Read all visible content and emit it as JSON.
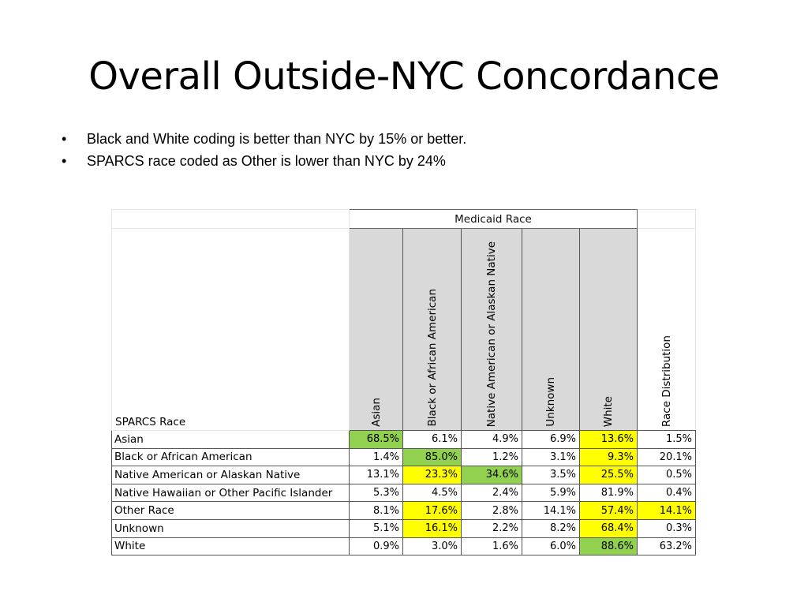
{
  "slide": {
    "title": "Overall Outside-NYC Concordance",
    "bullets": [
      "Black and White coding is better than NYC by 15% or better.",
      "SPARCS race coded as Other is lower than NYC by 24%"
    ],
    "bullet_glyph": "•"
  },
  "table": {
    "group_header": "Medicaid Race",
    "row_header": "SPARCS Race",
    "columns": [
      "Asian",
      "Black or African American",
      "Native American or Alaskan Native",
      "Unknown",
      "White",
      "Race Distribution"
    ],
    "highlight_colors": {
      "green": "#92d050",
      "yellow": "#ffff00"
    },
    "rows": [
      {
        "label": "Asian",
        "values": [
          "68.5%",
          "6.1%",
          "4.9%",
          "6.9%",
          "13.6%",
          "1.5%"
        ],
        "fills": [
          "green",
          "none",
          "none",
          "none",
          "yellow",
          "none"
        ]
      },
      {
        "label": "Black or African American",
        "values": [
          "1.4%",
          "85.0%",
          "1.2%",
          "3.1%",
          "9.3%",
          "20.1%"
        ],
        "fills": [
          "none",
          "green",
          "none",
          "none",
          "yellow",
          "none"
        ]
      },
      {
        "label": "Native American or Alaskan Native",
        "values": [
          "13.1%",
          "23.3%",
          "34.6%",
          "3.5%",
          "25.5%",
          "0.5%"
        ],
        "fills": [
          "none",
          "yellow",
          "green",
          "none",
          "yellow",
          "none"
        ]
      },
      {
        "label": "Native Hawaiian or Other Pacific Islander",
        "values": [
          "5.3%",
          "4.5%",
          "2.4%",
          "5.9%",
          "81.9%",
          "0.4%"
        ],
        "fills": [
          "none",
          "none",
          "none",
          "none",
          "none",
          "none"
        ]
      },
      {
        "label": "Other Race",
        "values": [
          "8.1%",
          "17.6%",
          "2.8%",
          "14.1%",
          "57.4%",
          "14.1%"
        ],
        "fills": [
          "none",
          "yellow",
          "none",
          "none",
          "yellow",
          "yellow"
        ]
      },
      {
        "label": "Unknown",
        "values": [
          "5.1%",
          "16.1%",
          "2.2%",
          "8.2%",
          "68.4%",
          "0.3%"
        ],
        "fills": [
          "none",
          "yellow",
          "none",
          "none",
          "yellow",
          "none"
        ]
      },
      {
        "label": "White",
        "values": [
          "0.9%",
          "3.0%",
          "1.6%",
          "6.0%",
          "88.6%",
          "63.2%"
        ],
        "fills": [
          "none",
          "none",
          "none",
          "none",
          "green",
          "none"
        ]
      }
    ]
  }
}
